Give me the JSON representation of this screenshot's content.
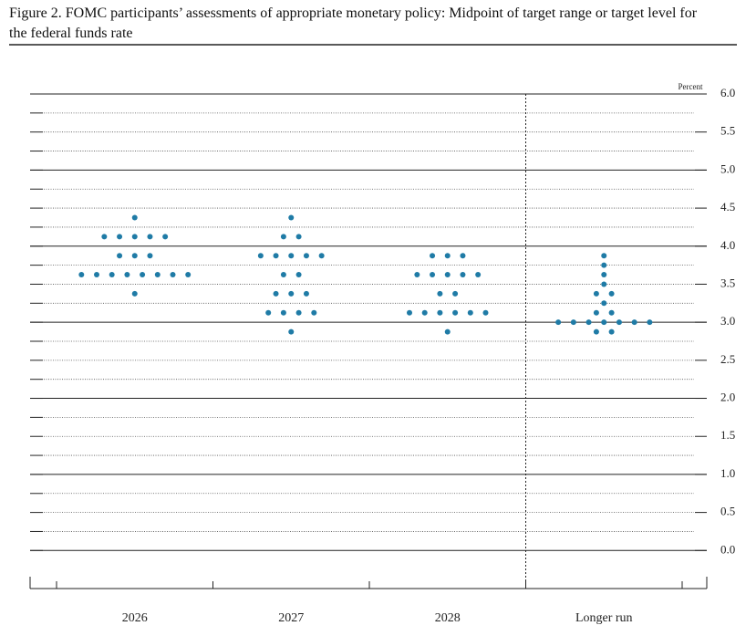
{
  "chart_data": {
    "type": "dot",
    "title": "Figure 2. FOMC participants’ assessments of appropriate monetary policy: Midpoint of target range or target level for the federal funds rate",
    "y_label": "Percent",
    "categories": [
      "2026",
      "2027",
      "2028",
      "Longer run"
    ],
    "color": "#1f7ba6",
    "values": [
      [
        4.375,
        4.125,
        4.125,
        4.125,
        4.125,
        4.125,
        3.875,
        3.875,
        3.875,
        3.625,
        3.625,
        3.625,
        3.625,
        3.625,
        3.625,
        3.625,
        3.625,
        3.375
      ],
      [
        4.375,
        4.125,
        4.125,
        3.875,
        3.875,
        3.875,
        3.875,
        3.875,
        3.625,
        3.625,
        3.375,
        3.375,
        3.375,
        3.125,
        3.125,
        3.125,
        3.125,
        2.875
      ],
      [
        3.875,
        3.875,
        3.875,
        3.625,
        3.625,
        3.625,
        3.625,
        3.625,
        3.375,
        3.375,
        3.125,
        3.125,
        3.125,
        3.125,
        3.125,
        3.125,
        2.875
      ],
      [
        3.875,
        3.75,
        3.625,
        3.5,
        3.375,
        3.375,
        3.25,
        3.125,
        3.125,
        3.0,
        3.0,
        3.0,
        3.0,
        3.0,
        3.0,
        3.0,
        2.875,
        2.875
      ]
    ],
    "ylim": [
      -0.5,
      6.0
    ],
    "yticks": [
      {
        "value": 0,
        "label": "0.0"
      },
      {
        "value": 0.5,
        "label": "0.5"
      },
      {
        "value": 1,
        "label": "1.0"
      },
      {
        "value": 1.5,
        "label": "1.5"
      },
      {
        "value": 2,
        "label": "2.0"
      },
      {
        "value": 2.5,
        "label": "2.5"
      },
      {
        "value": 3,
        "label": "3.0"
      },
      {
        "value": 3.5,
        "label": "3.5"
      },
      {
        "value": 4,
        "label": "4.0"
      },
      {
        "value": 4.5,
        "label": "4.5"
      },
      {
        "value": 5,
        "label": "5.0"
      },
      {
        "value": 5.5,
        "label": "5.5"
      },
      {
        "value": 6,
        "label": "6.0"
      }
    ],
    "minor_yticks": [
      0.25,
      0.75,
      1.25,
      1.75,
      2.25,
      2.75,
      3.25,
      3.75,
      4.25,
      4.75,
      5.25,
      5.75
    ],
    "grid": true
  }
}
